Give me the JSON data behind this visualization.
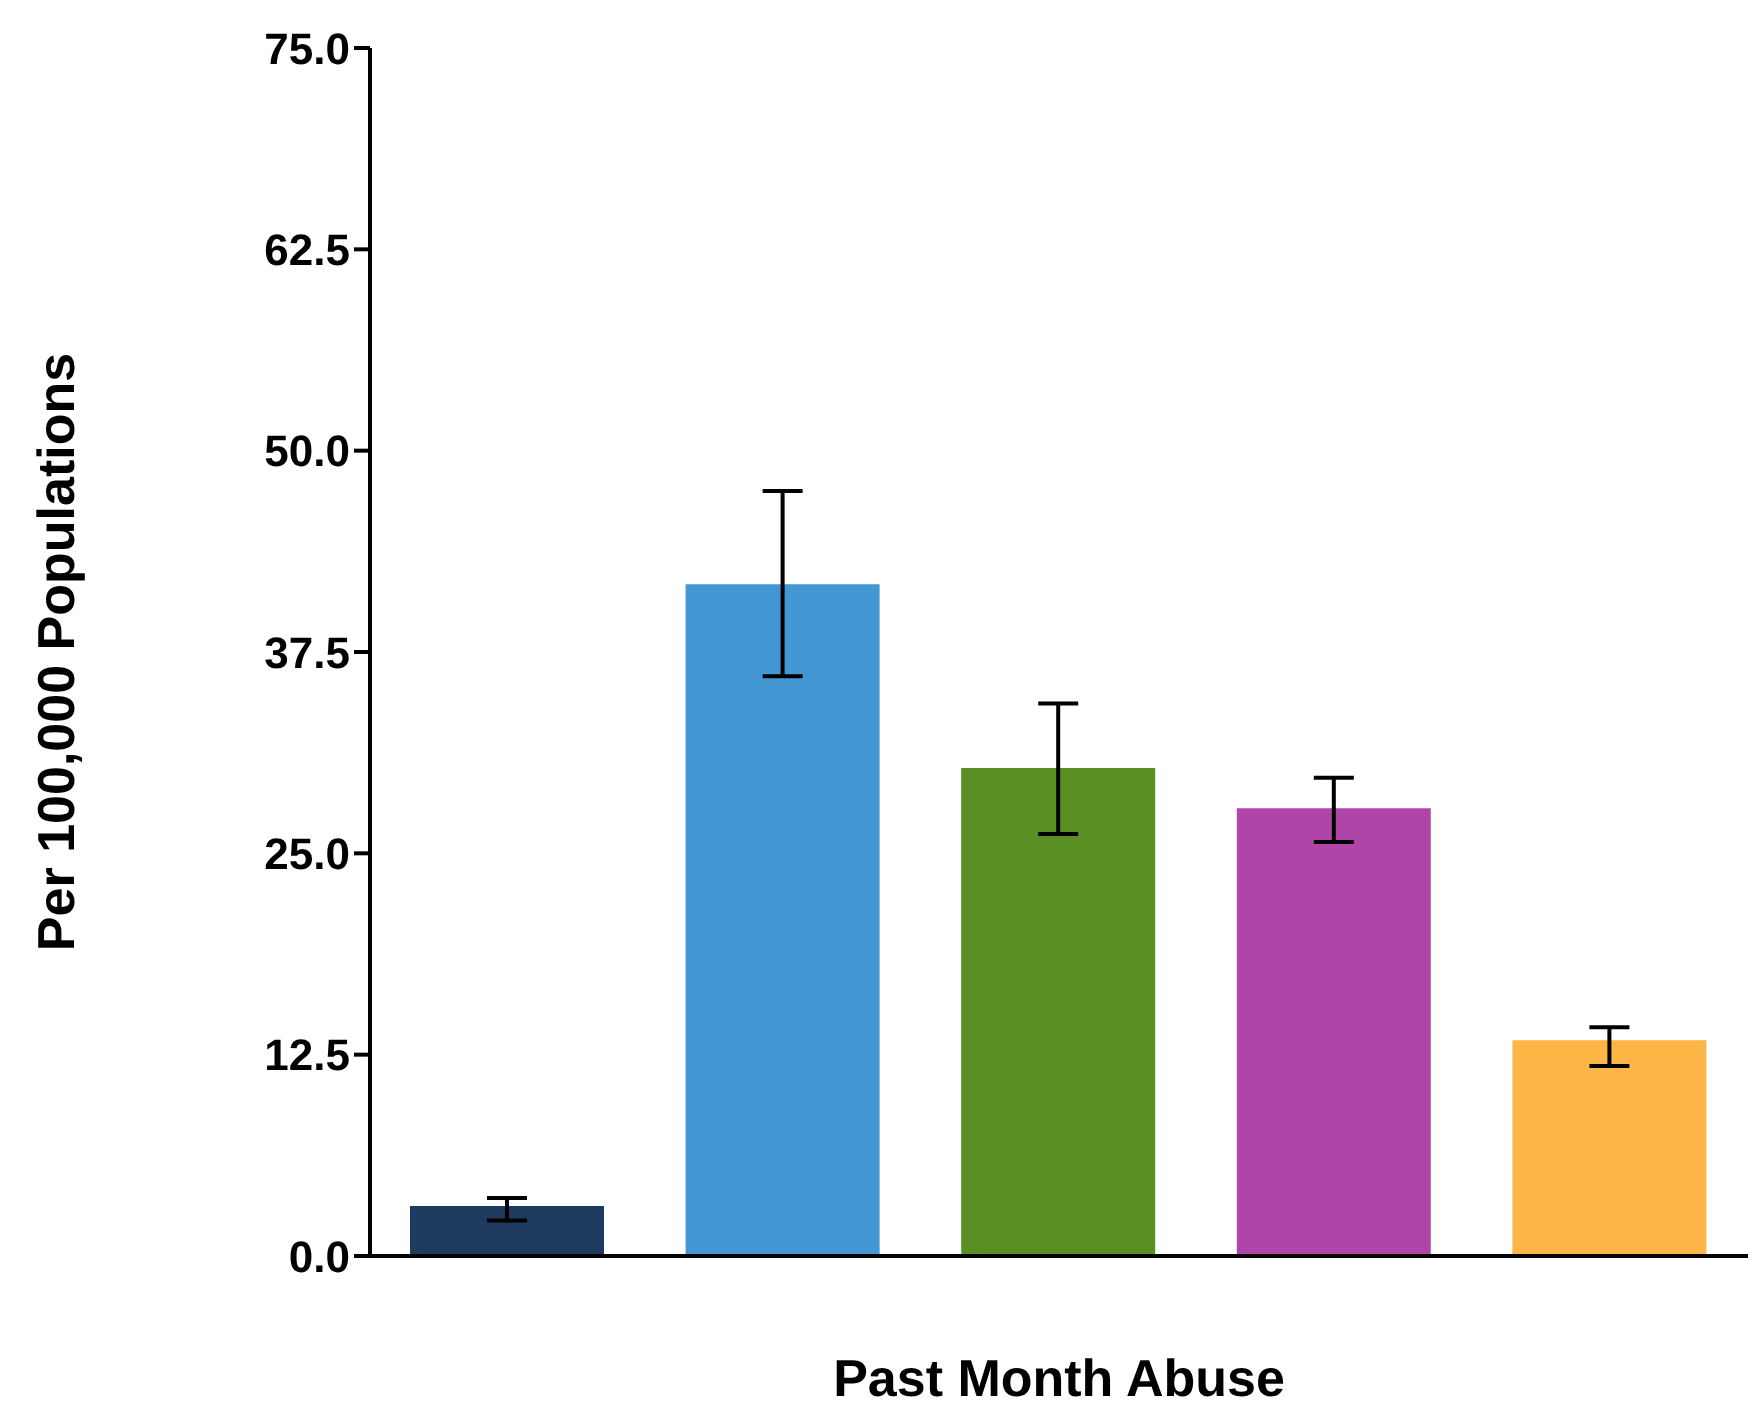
{
  "chart_data": {
    "type": "bar",
    "xlabel": "Past Month Abuse",
    "ylabel": "Per 100,000 Populations",
    "categories": [
      null,
      null,
      null,
      null,
      null
    ],
    "values": [
      3.1,
      41.7,
      30.3,
      27.8,
      13.4
    ],
    "colors": [
      "#1f3a5f",
      "#4397d3",
      "#5a8f23",
      "#b045a8",
      "#fdb545"
    ],
    "errors": [
      [
        2.2,
        3.6
      ],
      [
        36.0,
        47.5
      ],
      [
        26.2,
        34.3
      ],
      [
        25.7,
        29.7
      ],
      [
        11.8,
        14.2
      ]
    ],
    "ylim": [
      0,
      75
    ],
    "yticks": [
      {
        "value": 0,
        "label": "0.0"
      },
      {
        "value": 12.5,
        "label": "12.5"
      },
      {
        "value": 25,
        "label": "25.0"
      },
      {
        "value": 37.5,
        "label": "37.5"
      },
      {
        "value": 50,
        "label": "50.0"
      },
      {
        "value": 62.5,
        "label": "62.5"
      },
      {
        "value": 75,
        "label": "75.0"
      }
    ],
    "grid": false,
    "legend": false
  }
}
